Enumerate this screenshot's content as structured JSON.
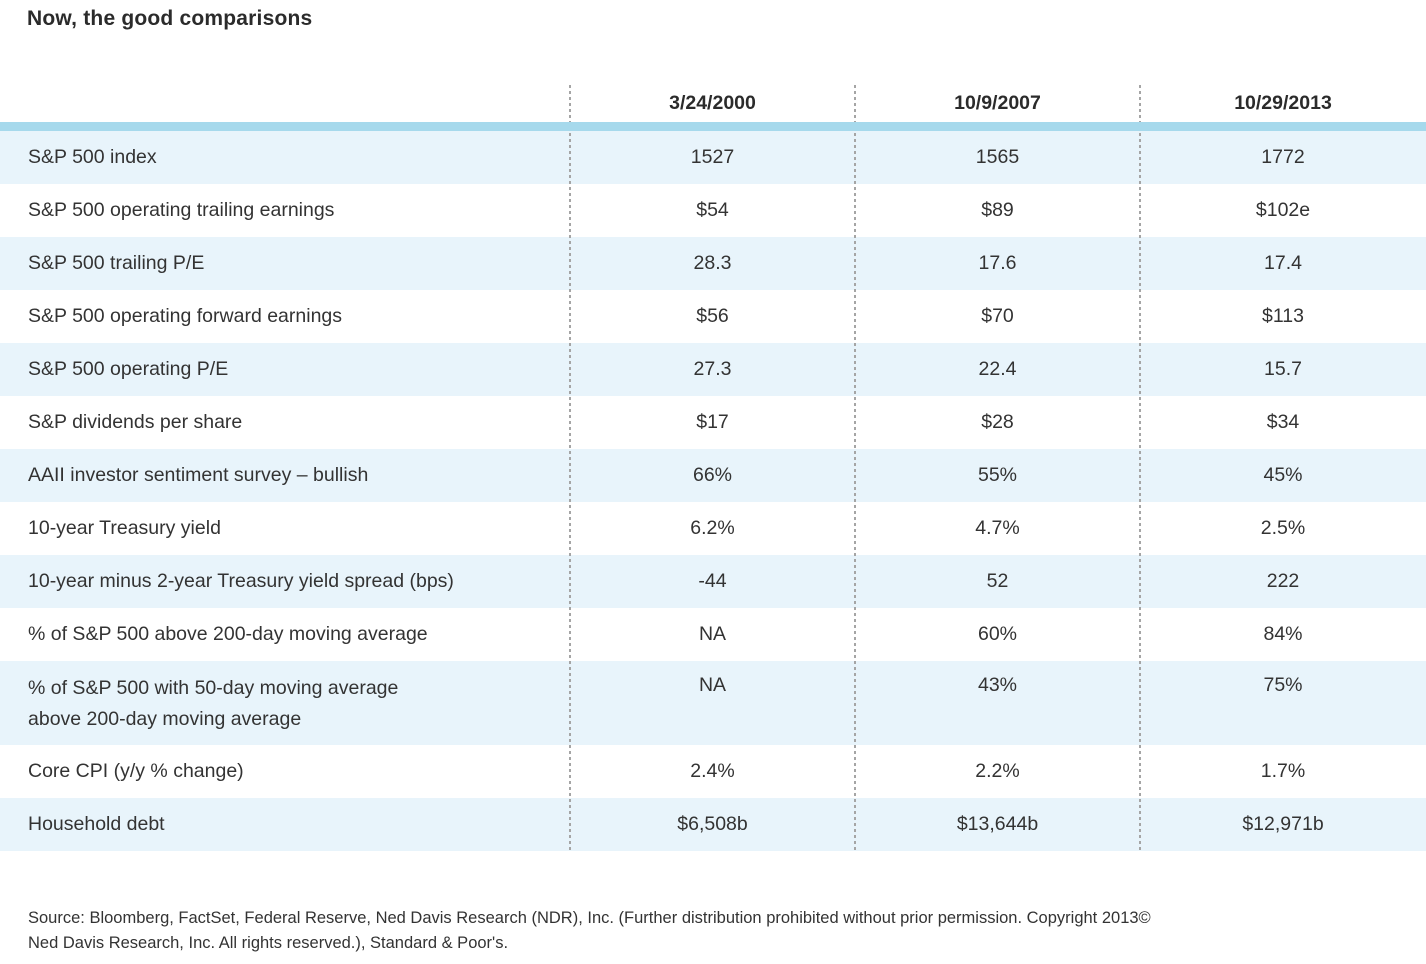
{
  "title": "Now, the good comparisons",
  "chart_data": {
    "type": "table",
    "title": "Now, the good comparisons",
    "columns": [
      "3/24/2000",
      "10/9/2007",
      "10/29/2013"
    ],
    "rows": [
      {
        "label": "S&P 500 index",
        "values": [
          "1527",
          "1565",
          "1772"
        ]
      },
      {
        "label": "S&P 500 operating trailing earnings",
        "values": [
          "$54",
          "$89",
          "$102e"
        ]
      },
      {
        "label": "S&P 500 trailing P/E",
        "values": [
          "28.3",
          "17.6",
          "17.4"
        ]
      },
      {
        "label": "S&P 500 operating forward earnings",
        "values": [
          "$56",
          "$70",
          "$113"
        ]
      },
      {
        "label": "S&P 500 operating P/E",
        "values": [
          "27.3",
          "22.4",
          "15.7"
        ]
      },
      {
        "label": "S&P dividends per share",
        "values": [
          "$17",
          "$28",
          "$34"
        ]
      },
      {
        "label": "AAII investor sentiment survey – bullish",
        "values": [
          "66%",
          "55%",
          "45%"
        ]
      },
      {
        "label": "10-year Treasury yield",
        "values": [
          "6.2%",
          "4.7%",
          "2.5%"
        ]
      },
      {
        "label": "10-year minus 2-year Treasury yield spread (bps)",
        "values": [
          "-44",
          "52",
          "222"
        ]
      },
      {
        "label": "% of S&P 500 above 200-day moving average",
        "values": [
          "NA",
          "60%",
          "84%"
        ]
      },
      {
        "label": "% of S&P 500 with 50-day moving average",
        "label2": "above 200-day moving average",
        "values": [
          "NA",
          "43%",
          "75%"
        ]
      },
      {
        "label": "Core CPI (y/y % change)",
        "values": [
          "2.4%",
          "2.2%",
          "1.7%"
        ]
      },
      {
        "label": "Household debt",
        "values": [
          "$6,508b",
          "$13,644b",
          "$12,971b"
        ]
      }
    ],
    "layout": {
      "striped": true,
      "stripe_starts_on_first_row": true,
      "column_dividers": "dotted"
    }
  },
  "footer": {
    "line1": "Source: Bloomberg, FactSet, Federal Reserve, Ned Davis Research (NDR), Inc. (Further distribution prohibited without prior permission. Copyright 2013©",
    "line2": "Ned Davis Research, Inc. All rights reserved.), Standard & Poor's."
  },
  "colors": {
    "accent_bar": "#a6d9ec",
    "row_stripe": "#e8f4fb",
    "text": "#333333",
    "title": "#2b2b2b",
    "divider": "#a5a5a5"
  }
}
